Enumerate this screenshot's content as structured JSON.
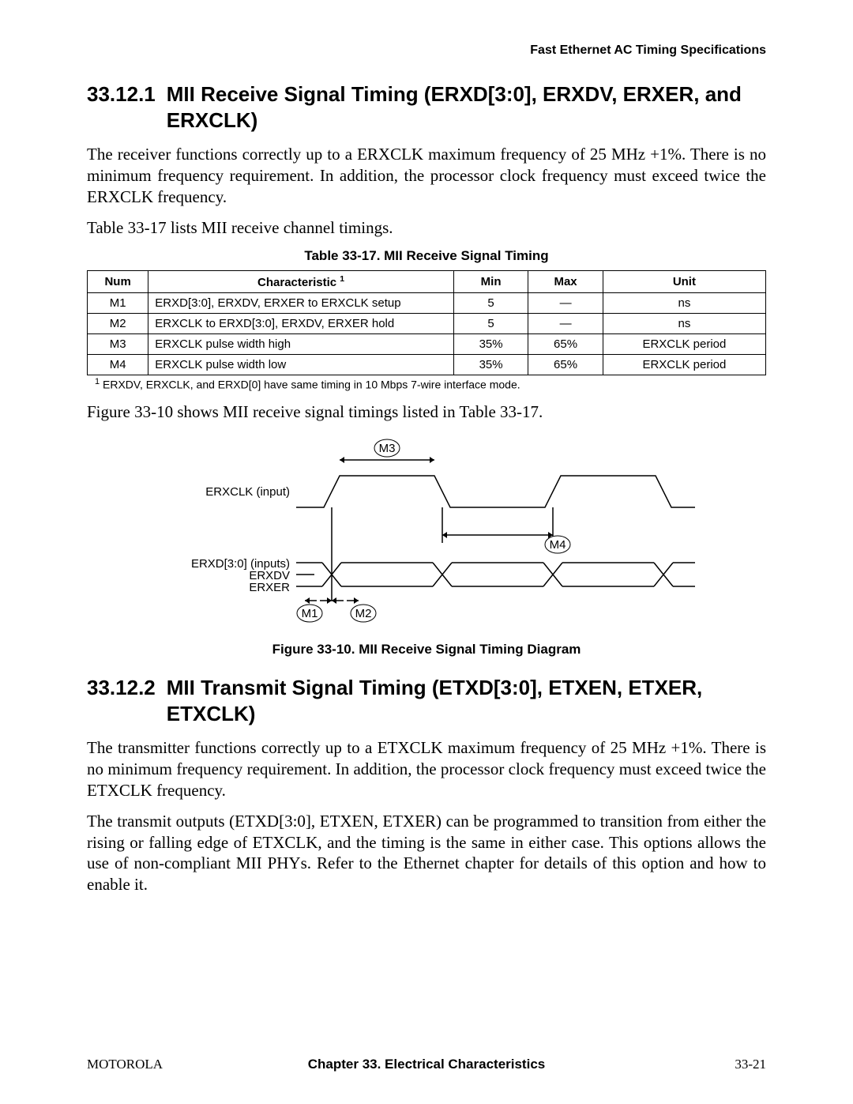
{
  "header": {
    "running_head": "Fast Ethernet AC Timing Specifications"
  },
  "section1": {
    "number": "33.12.1",
    "title": "MII Receive Signal Timing (ERXD[3:0], ERXDV, ERXER, and ERXCLK)",
    "para1": "The receiver functions correctly up to a ERXCLK maximum frequency of 25 MHz +1%. There is no minimum frequency requirement. In addition, the processor clock frequency must exceed twice the ERXCLK frequency.",
    "para2": "Table 33-17 lists MII receive channel timings."
  },
  "table1": {
    "caption": "Table 33-17. MII Receive Signal Timing",
    "columns": [
      "Num",
      "Characteristic ",
      "Min",
      "Max",
      "Unit"
    ],
    "col_sup": "1",
    "col_widths_pct": [
      9,
      45,
      11,
      11,
      24
    ],
    "rows": [
      [
        "M1",
        "ERXD[3:0], ERXDV, ERXER to ERXCLK setup",
        "5",
        "—",
        "ns"
      ],
      [
        "M2",
        "ERXCLK to ERXD[3:0], ERXDV, ERXER hold",
        "5",
        "—",
        "ns"
      ],
      [
        "M3",
        "ERXCLK pulse width high",
        "35%",
        "65%",
        "ERXCLK period"
      ],
      [
        "M4",
        "ERXCLK pulse width low",
        "35%",
        "65%",
        "ERXCLK period"
      ]
    ],
    "footnote_num": "1",
    "footnote": "ERXDV, ERXCLK, and ERXD[0] have same timing in 10 Mbps 7-wire interface mode."
  },
  "post_table_para": "Figure 33-10 shows MII receive signal timings listed in Table 33-17.",
  "figure": {
    "caption": "Figure 33-10. MII Receive Signal Timing Diagram",
    "label_clk": "ERXCLK (input)",
    "label_data1": "ERXD[3:0] (inputs)",
    "label_data2": "ERXDV",
    "label_data3": "ERXER",
    "m1": "M1",
    "m2": "M2",
    "m3": "M3",
    "m4": "M4",
    "stroke_color": "#000000",
    "stroke_width": 1.5,
    "font_size": 15
  },
  "section2": {
    "number": "33.12.2",
    "title": "MII Transmit Signal Timing (ETXD[3:0], ETXEN, ETXER, ETXCLK)",
    "para1": "The transmitter functions correctly up to a ETXCLK maximum frequency of 25 MHz +1%. There is no minimum frequency requirement. In addition, the processor clock frequency must exceed twice the ETXCLK frequency.",
    "para2": "The transmit outputs (ETXD[3:0], ETXEN, ETXER) can be programmed to transition from either the rising or falling edge of ETXCLK, and the timing is the same in either case. This options allows the use of non-compliant MII PHYs. Refer to the Ethernet chapter for details of this option and how to enable it."
  },
  "footer": {
    "left": "MOTOROLA",
    "center": "Chapter 33.  Electrical Characteristics",
    "right": "33-21"
  }
}
